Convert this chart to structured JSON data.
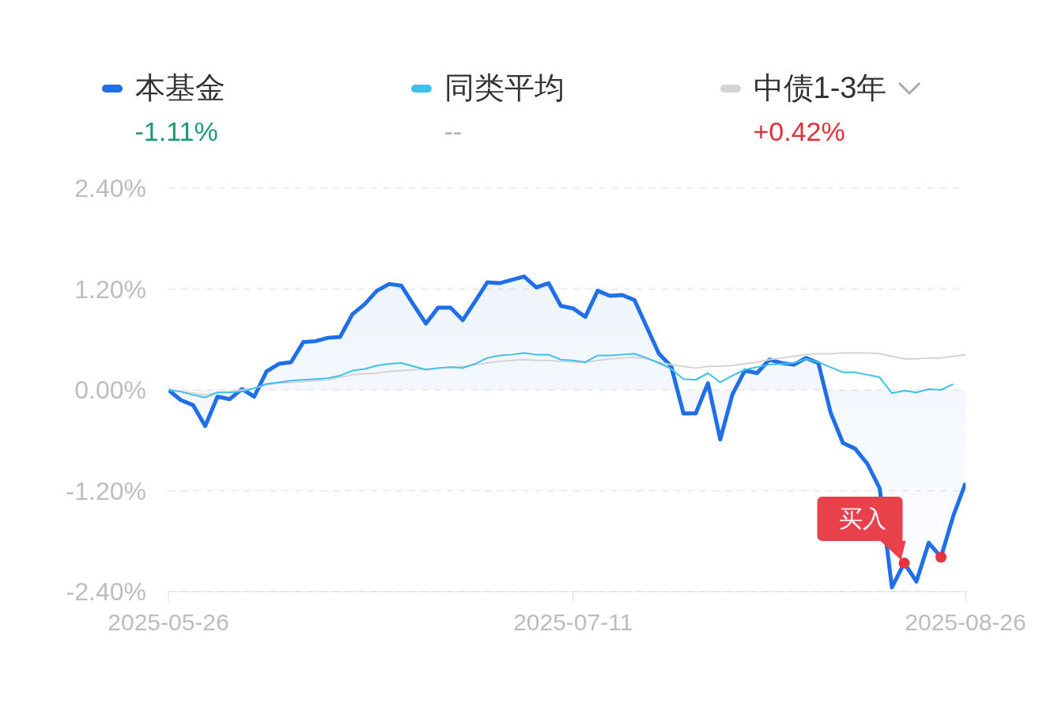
{
  "chart_data": {
    "type": "line",
    "categories": [
      "2025-05-26",
      null,
      null,
      null,
      null,
      null,
      null,
      null,
      null,
      null,
      null,
      null,
      null,
      null,
      null,
      null,
      null,
      null,
      null,
      null,
      null,
      null,
      null,
      null,
      null,
      null,
      null,
      null,
      null,
      null,
      null,
      null,
      null,
      "2025-07-11",
      null,
      null,
      null,
      null,
      null,
      null,
      null,
      null,
      null,
      null,
      null,
      null,
      null,
      null,
      null,
      null,
      null,
      null,
      null,
      null,
      null,
      null,
      null,
      null,
      null,
      null,
      null,
      null,
      null,
      null,
      null,
      "2025-08-26"
    ],
    "series": [
      {
        "name": "本基金",
        "type": "area",
        "color": "#1f6fe8",
        "values": [
          0.0,
          -0.12,
          -0.18,
          -0.43,
          -0.08,
          -0.11,
          0.01,
          -0.08,
          0.22,
          0.31,
          0.33,
          0.57,
          0.58,
          0.62,
          0.63,
          0.9,
          1.02,
          1.18,
          1.26,
          1.24,
          1.01,
          0.79,
          0.98,
          0.98,
          0.83,
          1.05,
          1.28,
          1.27,
          1.31,
          1.35,
          1.22,
          1.27,
          1.0,
          0.97,
          0.87,
          1.18,
          1.12,
          1.13,
          1.07,
          0.75,
          0.43,
          0.28,
          -0.28,
          -0.28,
          0.08,
          -0.59,
          -0.05,
          0.23,
          0.2,
          0.36,
          0.32,
          0.3,
          0.38,
          0.32,
          -0.27,
          -0.63,
          -0.7,
          -0.88,
          -1.17,
          -2.35,
          -2.06,
          -2.28,
          -1.82,
          -1.99,
          -1.5,
          -1.11
        ]
      },
      {
        "name": "同类平均",
        "color": "#3ec1e8",
        "values": [
          0.0,
          -0.02,
          -0.06,
          -0.09,
          -0.03,
          -0.03,
          -0.02,
          0.02,
          0.07,
          0.09,
          0.11,
          0.12,
          0.13,
          0.14,
          0.17,
          0.23,
          0.25,
          0.29,
          0.31,
          0.32,
          0.28,
          0.24,
          0.26,
          0.27,
          0.26,
          0.31,
          0.38,
          0.41,
          0.42,
          0.44,
          0.42,
          0.42,
          0.36,
          0.35,
          0.33,
          0.41,
          0.41,
          0.42,
          0.43,
          0.38,
          0.32,
          0.25,
          0.13,
          0.12,
          0.2,
          0.09,
          0.17,
          0.24,
          0.27,
          0.3,
          0.31,
          0.32,
          0.37,
          0.33,
          0.27,
          0.21,
          0.21,
          0.18,
          0.15,
          -0.04,
          -0.01,
          -0.03,
          0.01,
          0.0,
          0.07,
          null
        ]
      },
      {
        "name": "中债1-3年",
        "color": "#d4d4d4",
        "values": [
          0.0,
          -0.02,
          -0.04,
          -0.06,
          -0.03,
          -0.02,
          0.0,
          0.02,
          0.06,
          0.08,
          0.09,
          0.1,
          0.11,
          0.12,
          0.15,
          0.18,
          0.19,
          0.2,
          0.22,
          0.23,
          0.24,
          0.25,
          0.26,
          0.27,
          0.28,
          0.3,
          0.32,
          0.34,
          0.35,
          0.36,
          0.35,
          0.35,
          0.34,
          0.33,
          0.33,
          0.35,
          0.37,
          0.38,
          0.39,
          0.37,
          0.33,
          0.3,
          0.28,
          0.26,
          0.28,
          0.28,
          0.29,
          0.31,
          0.33,
          0.36,
          0.38,
          0.4,
          0.42,
          0.43,
          0.43,
          0.44,
          0.44,
          0.44,
          0.43,
          0.4,
          0.37,
          0.37,
          0.38,
          0.38,
          0.4,
          0.42
        ]
      },
      {
        "type": "scatter",
        "marker": "circle",
        "color": "#e8333f",
        "values": [
          null,
          null,
          null,
          null,
          null,
          null,
          null,
          null,
          null,
          null,
          null,
          null,
          null,
          null,
          null,
          null,
          null,
          null,
          null,
          null,
          null,
          null,
          null,
          null,
          null,
          null,
          null,
          null,
          null,
          null,
          null,
          null,
          null,
          null,
          null,
          null,
          null,
          null,
          null,
          null,
          null,
          null,
          null,
          null,
          null,
          null,
          null,
          null,
          null,
          null,
          null,
          null,
          null,
          null,
          null,
          null,
          null,
          null,
          null,
          null,
          -2.06,
          null,
          null,
          -1.99,
          null,
          null
        ]
      }
    ],
    "annotations": [
      "-1.11%",
      "--",
      "+0.42%",
      "买入"
    ],
    "ylim": [
      -2.4,
      2.4
    ],
    "yticks": [
      {
        "value": 2.4,
        "label": "2.40%"
      },
      {
        "value": 1.2,
        "label": "1.20%"
      },
      {
        "value": 0,
        "label": "0.00%"
      },
      {
        "value": -1.2,
        "label": "-1.20%"
      },
      {
        "value": -2.4,
        "label": "-2.40%"
      }
    ],
    "grid": "y",
    "legend": "top",
    "line_style": "solid",
    "marker": "none"
  }
}
